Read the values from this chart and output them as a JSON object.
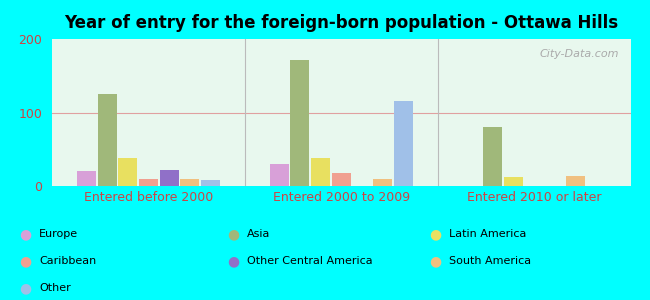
{
  "title": "Year of entry for the foreign-born population - Ottawa Hills",
  "categories": [
    "Entered before 2000",
    "Entered 2000 to 2009",
    "Entered 2010 or later"
  ],
  "series": {
    "Europe": [
      20,
      30,
      0
    ],
    "Asia": [
      125,
      172,
      80
    ],
    "Latin America": [
      38,
      38,
      12
    ],
    "Caribbean": [
      10,
      18,
      0
    ],
    "Other Central America": [
      22,
      0,
      0
    ],
    "South America": [
      10,
      10,
      13
    ],
    "Other": [
      8,
      115,
      0
    ]
  },
  "colors": {
    "Europe": "#d8a0d8",
    "Asia": "#a0b87a",
    "Latin America": "#e8e060",
    "Caribbean": "#f0a090",
    "Other Central America": "#9070c8",
    "South America": "#f0c080",
    "Other": "#a0c0e8"
  },
  "bar_order": [
    "Europe",
    "Asia",
    "Latin America",
    "Caribbean",
    "Other Central America",
    "South America",
    "Other"
  ],
  "ylim": [
    0,
    200
  ],
  "yticks": [
    0,
    100,
    200
  ],
  "background_color": "#00ffff",
  "plot_bg_color": "#e8f8ee",
  "watermark": "City-Data.com"
}
